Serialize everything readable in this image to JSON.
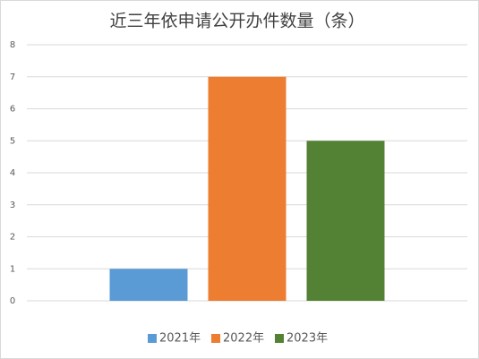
{
  "chart_data": {
    "type": "bar",
    "title": "近三年依申请公开办件数量（条）",
    "categories": [
      null
    ],
    "series": [
      {
        "name": "2021年",
        "color": "#5b9bd5",
        "values": [
          1
        ]
      },
      {
        "name": "2022年",
        "color": "#ed7d31",
        "values": [
          7
        ]
      },
      {
        "name": "2023年",
        "color": "#548235",
        "values": [
          5
        ]
      }
    ],
    "ylim": [
      0,
      8
    ],
    "yticks": [
      0,
      1,
      2,
      3,
      4,
      5,
      6,
      7,
      8
    ],
    "grid": true,
    "legend": "bottom"
  }
}
